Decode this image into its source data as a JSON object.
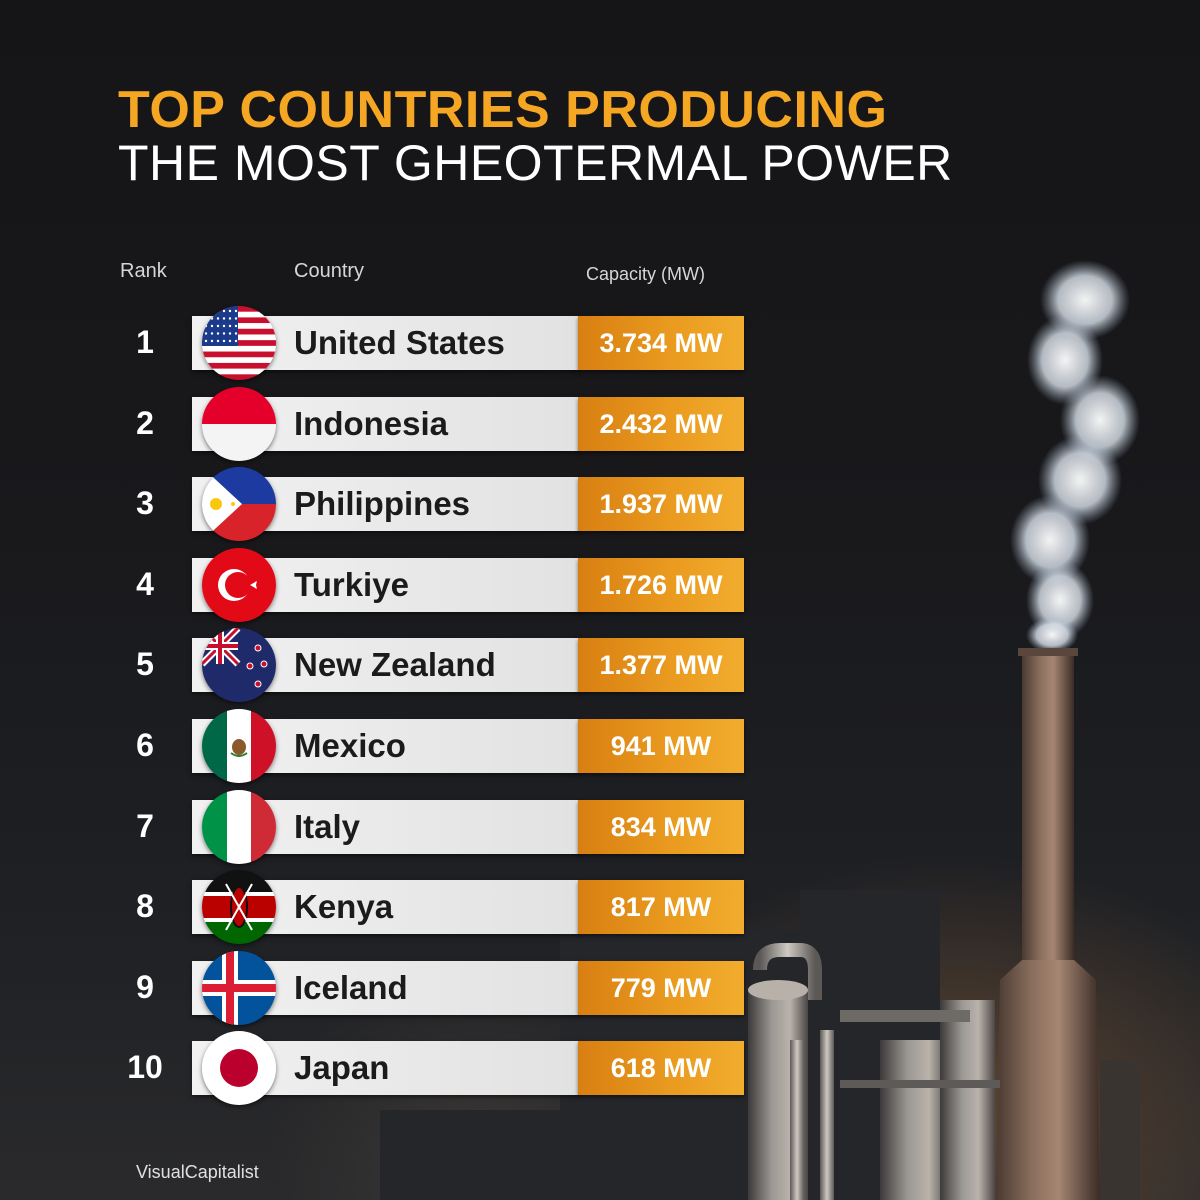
{
  "title_line1": "TOP COUNTRIES PRODUCING",
  "title_line2": "THE MOST GHEOTERMAL POWER",
  "headers": {
    "rank": "Rank",
    "country": "Country",
    "capacity": "Capacity (MW)"
  },
  "source": "VisualCapitalist",
  "colors": {
    "accent": "#f5a623",
    "bar": "#e9e9e9",
    "capacity_bar": "#e8941c",
    "background": "#151517"
  },
  "chart_data": {
    "type": "table",
    "title": "TOP COUNTRIES PRODUCING THE MOST GHEOTERMAL POWER",
    "columns": [
      "Rank",
      "Country",
      "Capacity (MW)"
    ],
    "rows": [
      {
        "rank": "1",
        "country": "United States",
        "capacity_label": "3.734 MW",
        "value": 3734,
        "flag": "flag-usa-icon"
      },
      {
        "rank": "2",
        "country": "Indonesia",
        "capacity_label": "2.432 MW",
        "value": 2432,
        "flag": "flag-indonesia-icon"
      },
      {
        "rank": "3",
        "country": "Philippines",
        "capacity_label": "1.937 MW",
        "value": 1937,
        "flag": "flag-philippines-icon"
      },
      {
        "rank": "4",
        "country": "Turkiye",
        "capacity_label": "1.726 MW",
        "value": 1726,
        "flag": "flag-turkiye-icon"
      },
      {
        "rank": "5",
        "country": "New Zealand",
        "capacity_label": "1.377 MW",
        "value": 1377,
        "flag": "flag-new-zealand-icon"
      },
      {
        "rank": "6",
        "country": "Mexico",
        "capacity_label": "941 MW",
        "value": 941,
        "flag": "flag-mexico-icon"
      },
      {
        "rank": "7",
        "country": "Italy",
        "capacity_label": "834 MW",
        "value": 834,
        "flag": "flag-italy-icon"
      },
      {
        "rank": "8",
        "country": "Kenya",
        "capacity_label": "817 MW",
        "value": 817,
        "flag": "flag-kenya-icon"
      },
      {
        "rank": "9",
        "country": "Iceland",
        "capacity_label": "779 MW",
        "value": 779,
        "flag": "flag-iceland-icon"
      },
      {
        "rank": "10",
        "country": "Japan",
        "capacity_label": "618 MW",
        "value": 618,
        "flag": "flag-japan-icon"
      }
    ]
  }
}
